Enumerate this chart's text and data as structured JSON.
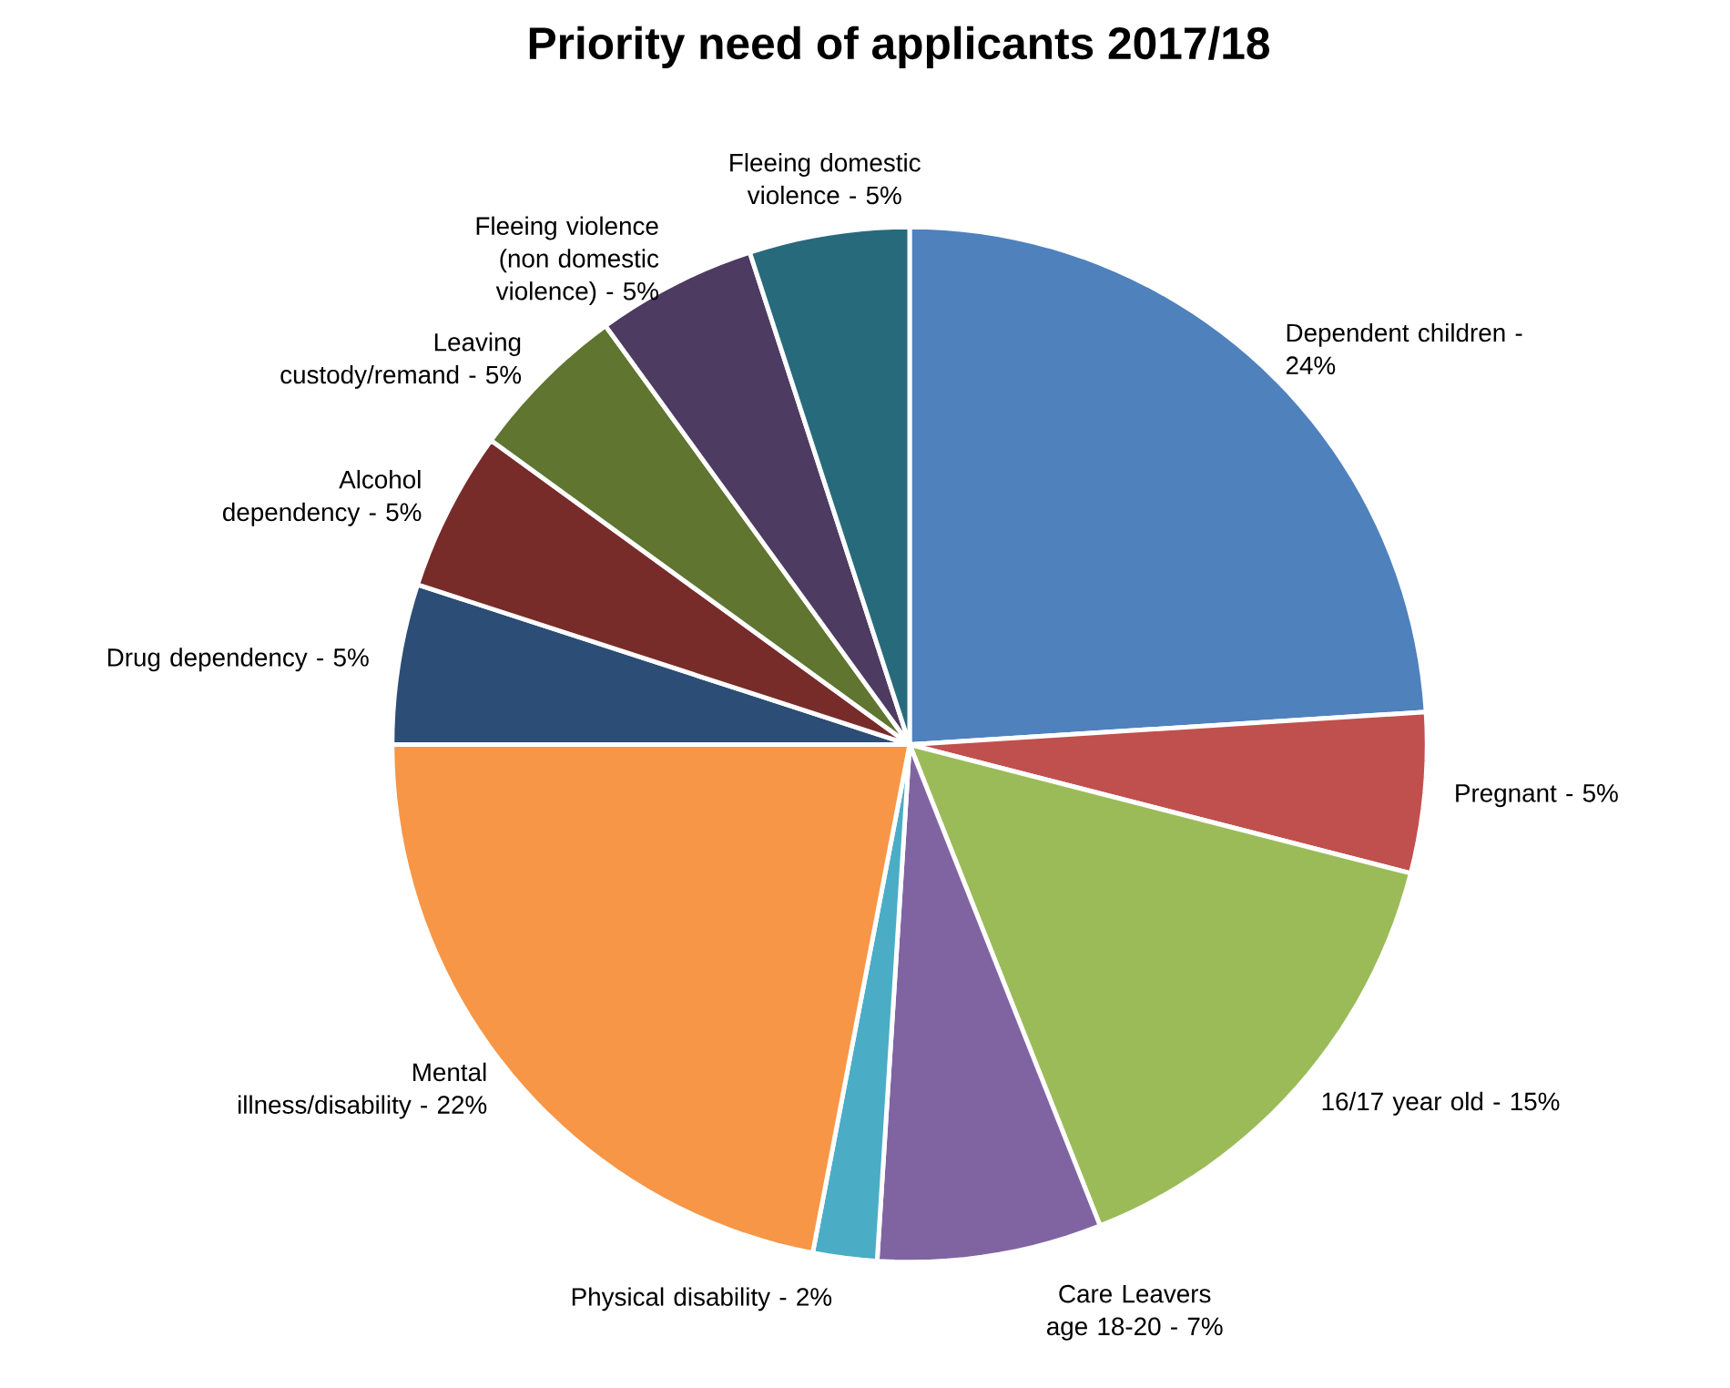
{
  "chart_data": {
    "type": "pie",
    "title": "Priority need of applicants 2017/18",
    "categories": [
      "Dependent children -",
      "Pregnant -",
      "16/17 year old -",
      "Care Leavers age 18-20 -",
      "Physical disability -",
      "Mental illness/disability -",
      "Drug dependency -",
      "Alcohol dependency -",
      "Leaving custody/remand -",
      "Fleeing violence (non domestic violence) -",
      "Fleeing domestic violence -"
    ],
    "values": [
      24,
      5,
      15,
      7,
      2,
      22,
      5,
      5,
      5,
      5,
      5
    ],
    "value_labels": [
      "24%",
      "5%",
      "15%",
      "7%",
      "2%",
      "22%",
      "5%",
      "5%",
      "5%",
      "5%",
      "5%"
    ],
    "colors": [
      "#4f81bd",
      "#c0504d",
      "#9bbb59",
      "#8064a2",
      "#4bacc6",
      "#f79646",
      "#2c4d75",
      "#772c2a",
      "#5f7530",
      "#4d3b62",
      "#276a7c"
    ]
  }
}
